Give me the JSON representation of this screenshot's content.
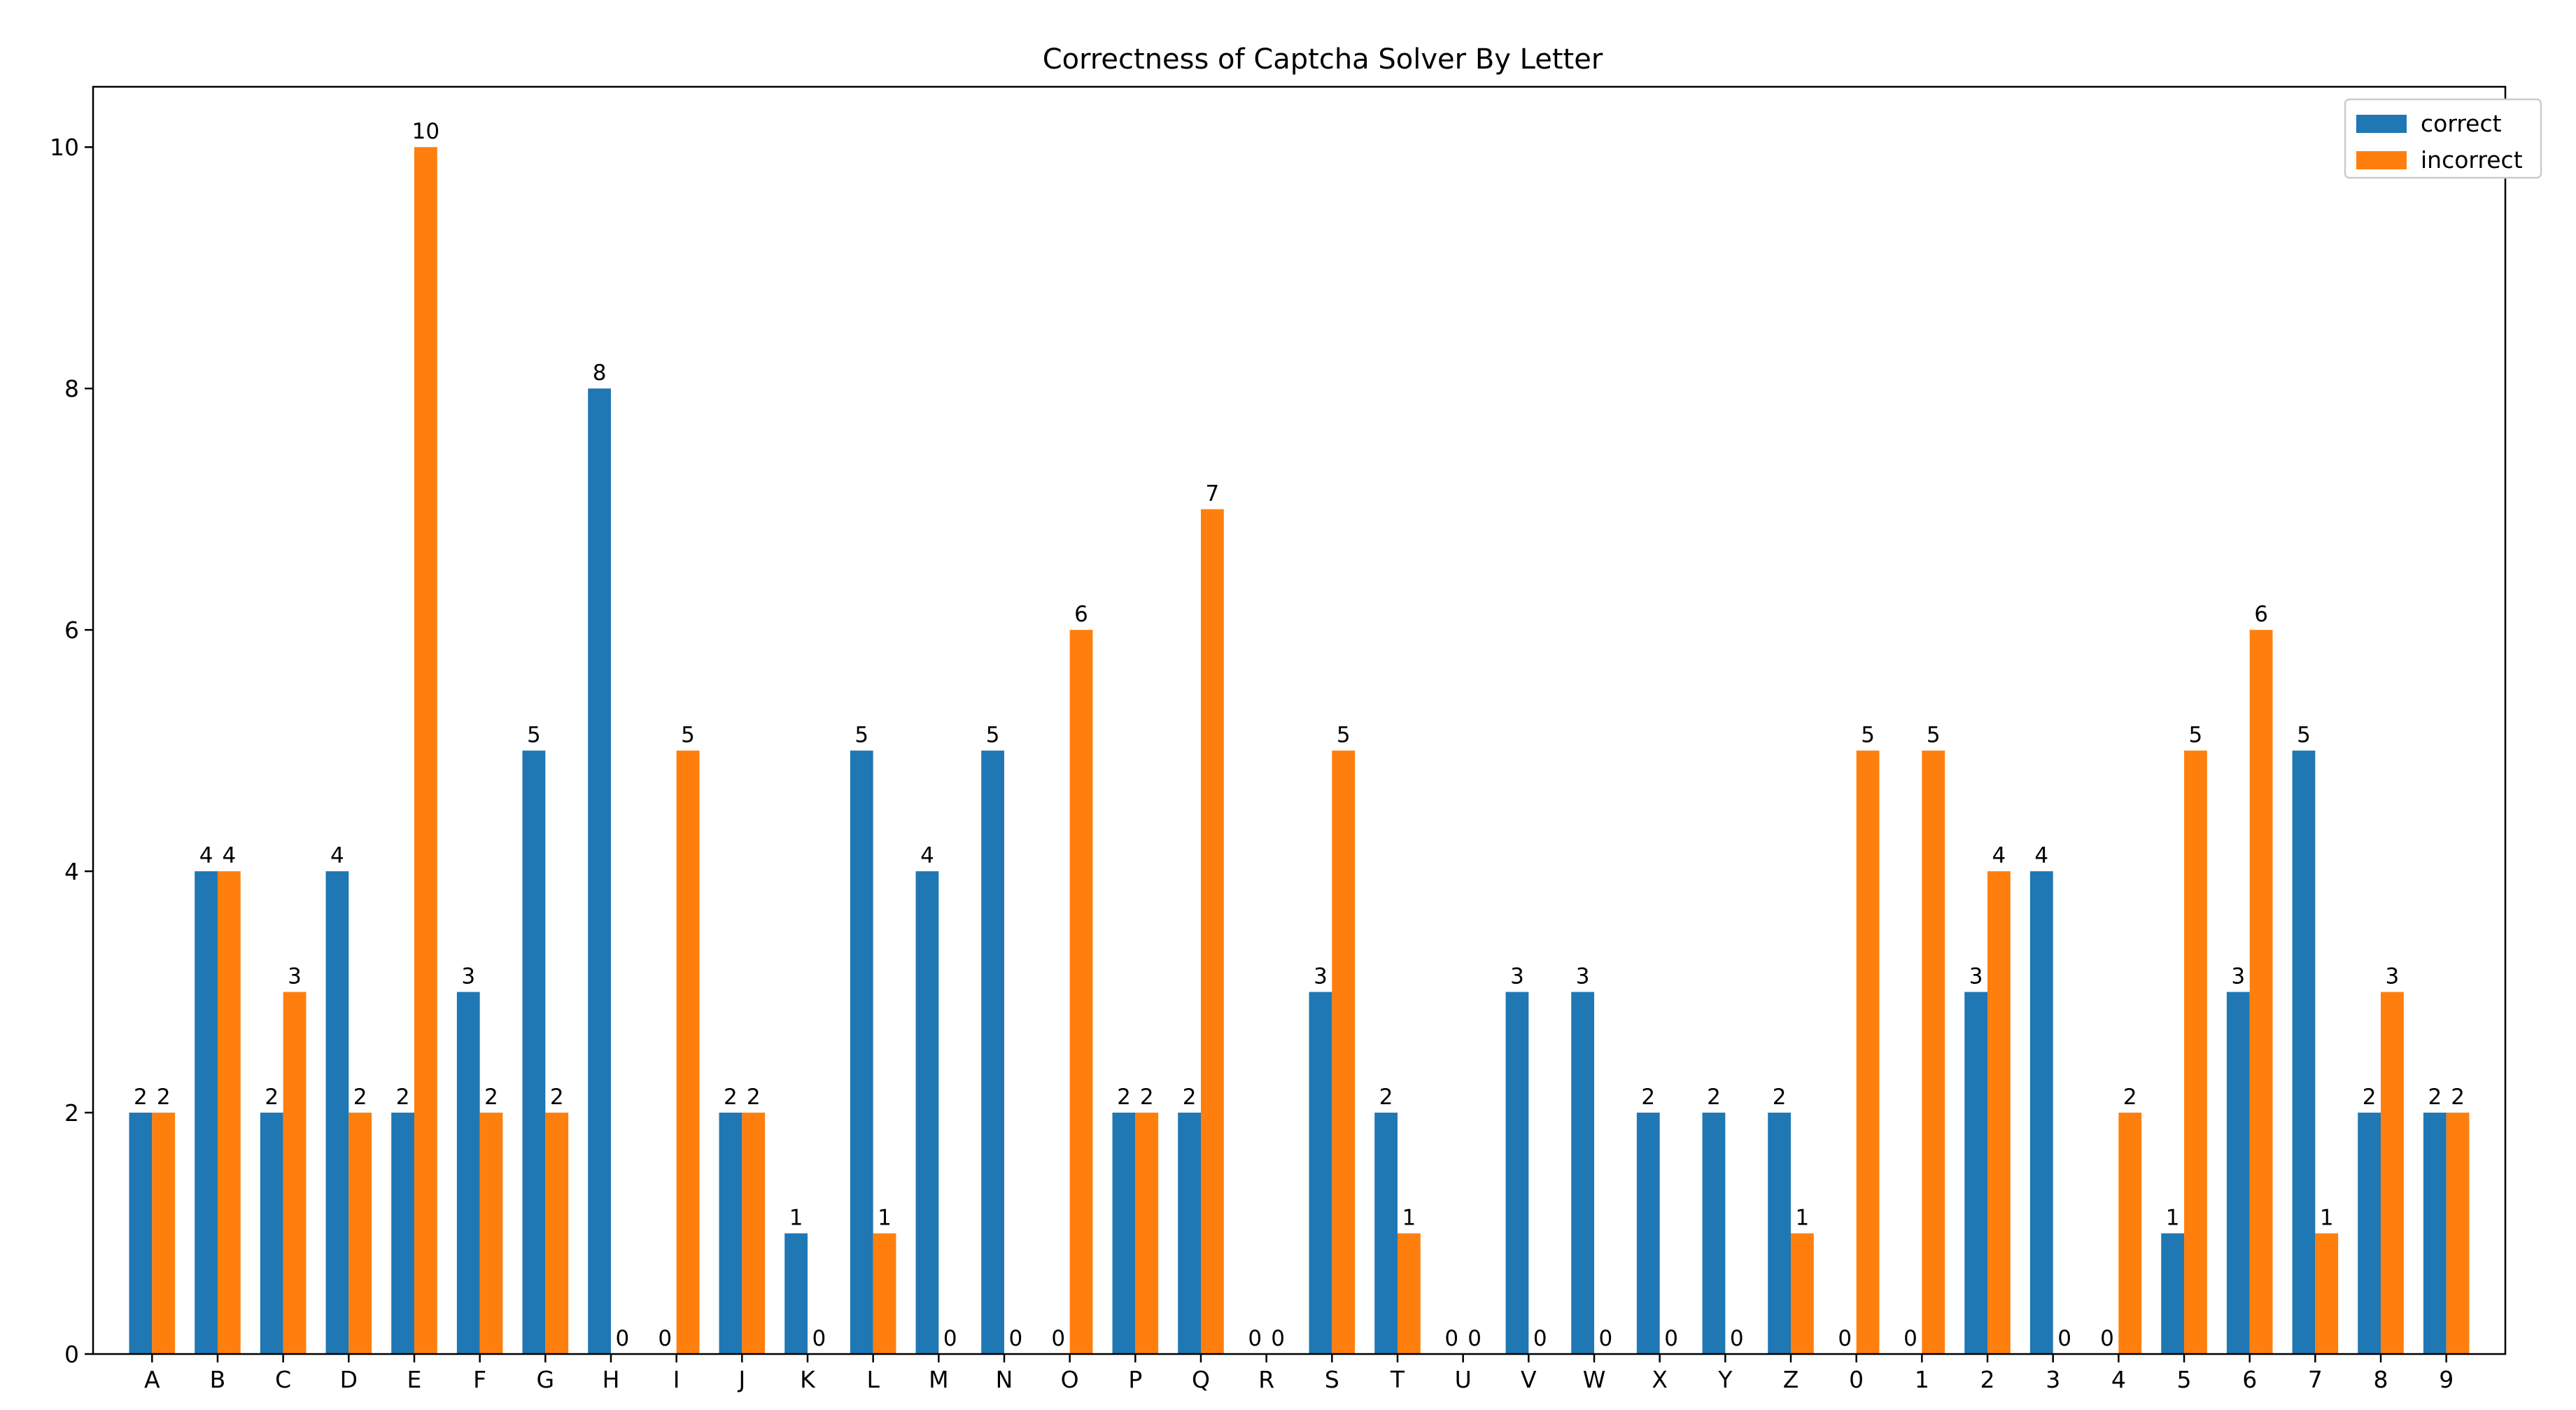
{
  "chart_data": {
    "type": "bar",
    "title": "Correctness of Captcha Solver By Letter",
    "xlabel": "",
    "ylabel": "",
    "ylim": [
      0,
      10.5
    ],
    "yticks": [
      0,
      2,
      4,
      6,
      8,
      10
    ],
    "grid": false,
    "legend_position": "top-right",
    "categories": [
      "A",
      "B",
      "C",
      "D",
      "E",
      "F",
      "G",
      "H",
      "I",
      "J",
      "K",
      "L",
      "M",
      "N",
      "O",
      "P",
      "Q",
      "R",
      "S",
      "T",
      "U",
      "V",
      "W",
      "X",
      "Y",
      "Z",
      "0",
      "1",
      "2",
      "3",
      "4",
      "5",
      "6",
      "7",
      "8",
      "9"
    ],
    "series": [
      {
        "name": "correct",
        "color": "#1f77b4",
        "values": [
          2,
          4,
          2,
          4,
          2,
          3,
          5,
          8,
          0,
          2,
          1,
          5,
          4,
          5,
          0,
          2,
          2,
          0,
          3,
          2,
          0,
          3,
          3,
          2,
          2,
          2,
          0,
          0,
          3,
          4,
          0,
          1,
          3,
          5,
          2,
          2
        ]
      },
      {
        "name": "incorrect",
        "color": "#ff7f0e",
        "values": [
          2,
          4,
          3,
          2,
          10,
          2,
          2,
          0,
          5,
          2,
          0,
          1,
          0,
          0,
          6,
          2,
          7,
          0,
          5,
          1,
          0,
          0,
          0,
          0,
          0,
          1,
          5,
          5,
          4,
          0,
          2,
          5,
          6,
          1,
          3,
          2
        ]
      }
    ]
  }
}
